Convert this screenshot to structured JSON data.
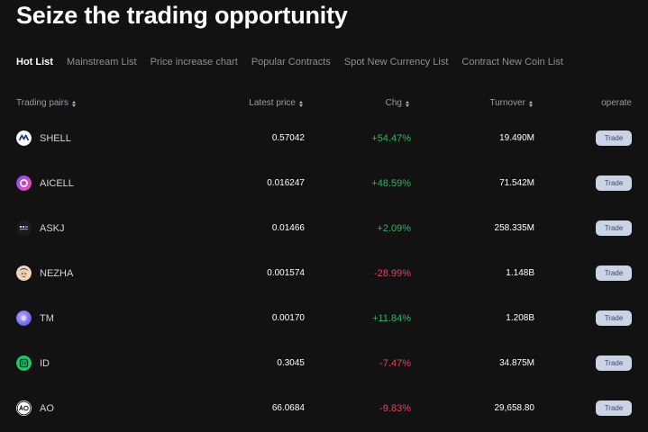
{
  "page": {
    "title": "Seize the trading opportunity"
  },
  "tabs": [
    {
      "label": "Hot List",
      "active": true
    },
    {
      "label": "Mainstream List",
      "active": false
    },
    {
      "label": "Price increase chart",
      "active": false
    },
    {
      "label": "Popular Contracts",
      "active": false
    },
    {
      "label": "Spot New Currency List",
      "active": false
    },
    {
      "label": "Contract New Coin List",
      "active": false
    }
  ],
  "table": {
    "headers": {
      "pair": "Trading pairs",
      "price": "Latest price",
      "chg": "Chg",
      "turnover": "Turnover",
      "operate": "operate"
    },
    "rows": [
      {
        "pair": "SHELL",
        "icon": "shell-coin-icon",
        "price": "0.57042",
        "chg": "+54.47%",
        "trend": "up",
        "turnover": "19.490M",
        "action": "Trade"
      },
      {
        "pair": "AICELL",
        "icon": "aicell-coin-icon",
        "price": "0.016247",
        "chg": "+48.59%",
        "trend": "up",
        "turnover": "71.542M",
        "action": "Trade"
      },
      {
        "pair": "ASKJ",
        "icon": "askj-coin-icon",
        "price": "0.01466",
        "chg": "+2.09%",
        "trend": "up",
        "turnover": "258.335M",
        "action": "Trade"
      },
      {
        "pair": "NEZHA",
        "icon": "nezha-coin-icon",
        "price": "0.001574",
        "chg": "-28.99%",
        "trend": "down",
        "turnover": "1.148B",
        "action": "Trade"
      },
      {
        "pair": "TM",
        "icon": "tm-coin-icon",
        "price": "0.00170",
        "chg": "+11.84%",
        "trend": "up",
        "turnover": "1.208B",
        "action": "Trade"
      },
      {
        "pair": "ID",
        "icon": "id-coin-icon",
        "price": "0.3045",
        "chg": "-7.47%",
        "trend": "down",
        "turnover": "34.875M",
        "action": "Trade"
      },
      {
        "pair": "AO",
        "icon": "ao-coin-icon",
        "price": "66.0684",
        "chg": "-9.83%",
        "trend": "down",
        "turnover": "29,658.80",
        "action": "Trade"
      }
    ]
  },
  "colors": {
    "background": "#121212",
    "up": "#32b35f",
    "down": "#e0445c",
    "trade_button": "#c9d4e6"
  }
}
